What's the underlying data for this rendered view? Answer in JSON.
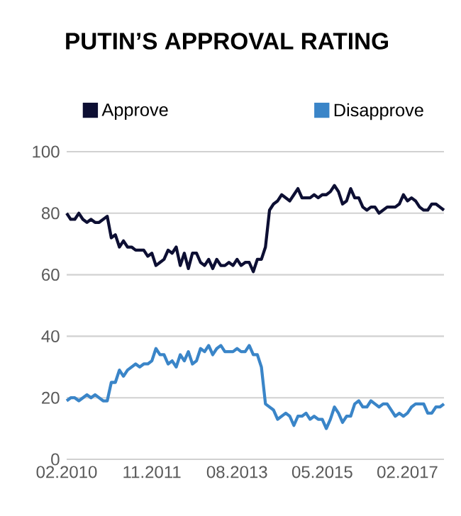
{
  "chart_data": {
    "type": "line",
    "title": "PUTIN’S APPROVAL RATING",
    "x": [
      "2010-02",
      "2010-03",
      "2010-04",
      "2010-05",
      "2010-06",
      "2010-07",
      "2010-08",
      "2010-09",
      "2010-10",
      "2010-11",
      "2010-12",
      "2011-01",
      "2011-02",
      "2011-03",
      "2011-04",
      "2011-05",
      "2011-06",
      "2011-07",
      "2011-08",
      "2011-09",
      "2011-10",
      "2011-11",
      "2011-12",
      "2012-01",
      "2012-02",
      "2012-03",
      "2012-04",
      "2012-05",
      "2012-06",
      "2012-07",
      "2012-08",
      "2012-09",
      "2012-10",
      "2012-11",
      "2012-12",
      "2013-01",
      "2013-02",
      "2013-03",
      "2013-04",
      "2013-05",
      "2013-06",
      "2013-07",
      "2013-08",
      "2013-09",
      "2013-10",
      "2013-11",
      "2013-12",
      "2014-01",
      "2014-02",
      "2014-03",
      "2014-04",
      "2014-05",
      "2014-06",
      "2014-07",
      "2014-08",
      "2014-09",
      "2014-10",
      "2014-11",
      "2014-12",
      "2015-01",
      "2015-02",
      "2015-03",
      "2015-04",
      "2015-05",
      "2015-06",
      "2015-07",
      "2015-08",
      "2015-09",
      "2015-10",
      "2015-11",
      "2015-12",
      "2016-01",
      "2016-02",
      "2016-03",
      "2016-04",
      "2016-05",
      "2016-06",
      "2016-07",
      "2016-08",
      "2016-09",
      "2016-10",
      "2016-11",
      "2016-12",
      "2017-01",
      "2017-02",
      "2017-03",
      "2017-04",
      "2017-05",
      "2017-06",
      "2017-07",
      "2017-08",
      "2017-09",
      "2017-10",
      "2017-11"
    ],
    "series": [
      {
        "name": "Approve",
        "color": "#0d0f33",
        "values": [
          80,
          78,
          78,
          80,
          78,
          77,
          78,
          77,
          77,
          78,
          79,
          72,
          73,
          69,
          71,
          69,
          69,
          68,
          68,
          68,
          66,
          67,
          63,
          64,
          65,
          68,
          67,
          69,
          63,
          67,
          62,
          67,
          67,
          64,
          63,
          65,
          62,
          65,
          63,
          63,
          64,
          63,
          65,
          63,
          64,
          64,
          61,
          65,
          65,
          69,
          81,
          83,
          84,
          86,
          85,
          84,
          86,
          88,
          85,
          85,
          85,
          86,
          85,
          86,
          86,
          87,
          89,
          87,
          83,
          84,
          88,
          85,
          85,
          82,
          81,
          82,
          82,
          80,
          81,
          82,
          82,
          82,
          83,
          86,
          84,
          85,
          84,
          82,
          81,
          81,
          83,
          83,
          82,
          81
        ]
      },
      {
        "name": "Disapprove",
        "color": "#3a85c8",
        "values": [
          19,
          20,
          20,
          19,
          20,
          21,
          20,
          21,
          20,
          19,
          19,
          25,
          25,
          29,
          27,
          29,
          30,
          31,
          30,
          31,
          31,
          32,
          36,
          34,
          34,
          31,
          32,
          30,
          34,
          32,
          35,
          31,
          32,
          36,
          35,
          37,
          34,
          36,
          37,
          35,
          35,
          35,
          36,
          35,
          35,
          37,
          34,
          34,
          30,
          18,
          17,
          16,
          13,
          14,
          15,
          14,
          11,
          14,
          14,
          15,
          13,
          14,
          13,
          13,
          10,
          13,
          17,
          15,
          12,
          14,
          14,
          18,
          19,
          17,
          17,
          19,
          18,
          17,
          18,
          18,
          16,
          14,
          15,
          14,
          15,
          17,
          18,
          18,
          18,
          15,
          15,
          17,
          17,
          18
        ]
      }
    ],
    "xlim": [
      "2010-02",
      "2017-11"
    ],
    "xticks": [
      {
        "value": "2010-02",
        "label": "02.2010"
      },
      {
        "value": "2011-11",
        "label": "11.2011"
      },
      {
        "value": "2013-08",
        "label": "08.2013"
      },
      {
        "value": "2015-05",
        "label": "05.2015"
      },
      {
        "value": "2017-02",
        "label": "02.2017"
      }
    ],
    "ylim": [
      0,
      100
    ],
    "yticks": [
      0,
      20,
      40,
      60,
      80,
      100
    ],
    "grid": "y",
    "legend": "top",
    "marker": "none",
    "line_style": "solid"
  }
}
